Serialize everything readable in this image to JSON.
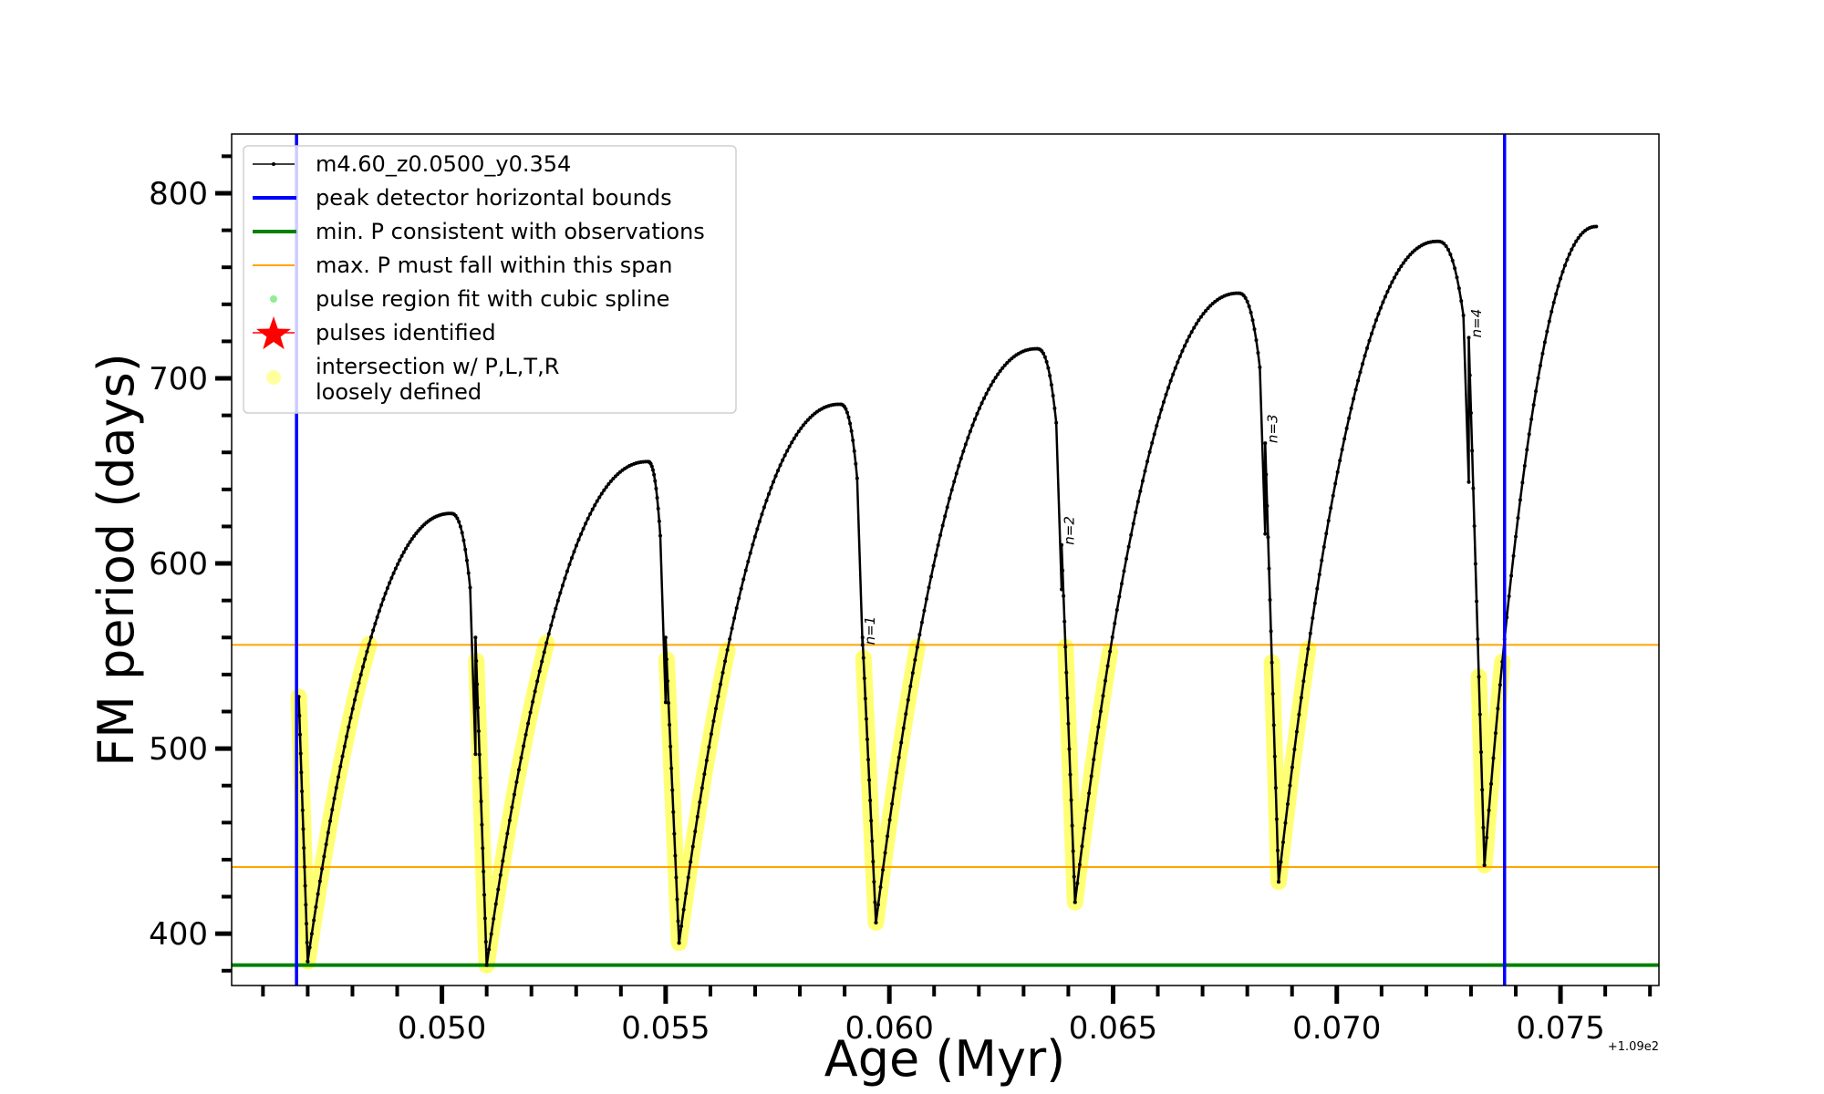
{
  "chart_data": {
    "type": "line",
    "title": "",
    "xlabel": "Age (Myr)",
    "ylabel": "FM period (days)",
    "x_offset_label": "+1.09e2",
    "xlim": [
      0.0453,
      0.0772
    ],
    "ylim": [
      372,
      832
    ],
    "x_major_ticks": [
      0.05,
      0.055,
      0.06,
      0.065,
      0.07,
      0.075
    ],
    "x_tick_labels": [
      "0.050",
      "0.055",
      "0.060",
      "0.065",
      "0.070",
      "0.075"
    ],
    "x_minor_step": 0.001,
    "y_major_ticks": [
      400,
      500,
      600,
      700,
      800
    ],
    "y_tick_labels": [
      "400",
      "500",
      "600",
      "700",
      "800"
    ],
    "y_minor_step": 20,
    "grid": false,
    "legend_position": "top-left",
    "vertical_lines": [
      {
        "name": "peak detector horizontal bounds",
        "x": 0.04675,
        "color": "#0000ff"
      },
      {
        "name": "peak detector horizontal bounds",
        "x": 0.07375,
        "color": "#0000ff"
      }
    ],
    "horizontal_lines": [
      {
        "name": "min. P consistent with observations",
        "y": 383,
        "color": "#008000"
      },
      {
        "name": "max. P must fall within this span",
        "y": 556,
        "color": "#ffa500"
      },
      {
        "name": "max. P must fall within this span",
        "y": 436,
        "color": "#ffa500"
      }
    ],
    "series": [
      {
        "name": "m4.60_z0.0500_y0.354",
        "color": "#000000",
        "cycles": [
          {
            "start": [
              0.0468,
              528
            ],
            "min": [
              0.047,
              385
            ],
            "peak": [
              0.0502,
              627
            ],
            "drop": 0.05075
          },
          {
            "start": [
              0.05075,
              560
            ],
            "min": [
              0.051,
              383
            ],
            "peak": [
              0.0546,
              655
            ],
            "drop": 0.055
          },
          {
            "start": [
              0.055,
              560
            ],
            "min": [
              0.0553,
              395
            ],
            "peak": [
              0.0589,
              686
            ],
            "drop": 0.0594
          },
          {
            "start": [
              0.0594,
              560
            ],
            "min": [
              0.0597,
              406
            ],
            "peak": [
              0.0633,
              716
            ],
            "drop": 0.06385
          },
          {
            "start": [
              0.06385,
              610
            ],
            "min": [
              0.06415,
              417
            ],
            "peak": [
              0.0678,
              746
            ],
            "drop": 0.0684
          },
          {
            "start": [
              0.0684,
              665
            ],
            "min": [
              0.0687,
              428
            ],
            "peak": [
              0.07225,
              774
            ],
            "drop": 0.07295
          },
          {
            "start": [
              0.07295,
              722
            ],
            "min": [
              0.0733,
              437
            ],
            "end": [
              0.0758,
              782
            ]
          }
        ]
      }
    ],
    "annotations": [
      {
        "text": "n=1",
        "x": 0.05955,
        "y": 556
      },
      {
        "text": "n=2",
        "x": 0.064,
        "y": 610
      },
      {
        "text": "n=3",
        "x": 0.06855,
        "y": 665
      },
      {
        "text": "n=4",
        "x": 0.0731,
        "y": 722
      }
    ],
    "legend": [
      {
        "label": "m4.60_z0.0500_y0.354",
        "marker": "line-dot",
        "color": "#000000"
      },
      {
        "label": "peak detector horizontal bounds",
        "marker": "line-thick",
        "color": "#0000ff"
      },
      {
        "label": "min. P consistent with observations",
        "marker": "line-thick",
        "color": "#008000"
      },
      {
        "label": "max. P must fall within this span",
        "marker": "line-thin",
        "color": "#ffa500"
      },
      {
        "label": "pulse region fit with cubic spline",
        "marker": "dot",
        "color": "#90ee90"
      },
      {
        "label": "pulses identified",
        "marker": "star",
        "color": "#ff0000"
      },
      {
        "label": "intersection w/ P,L,T,R",
        "label2": "loosely defined",
        "marker": "circle",
        "color": "#ffffa0"
      }
    ],
    "highlight_color": "#ffff00",
    "fit_color": "#90ee90"
  }
}
